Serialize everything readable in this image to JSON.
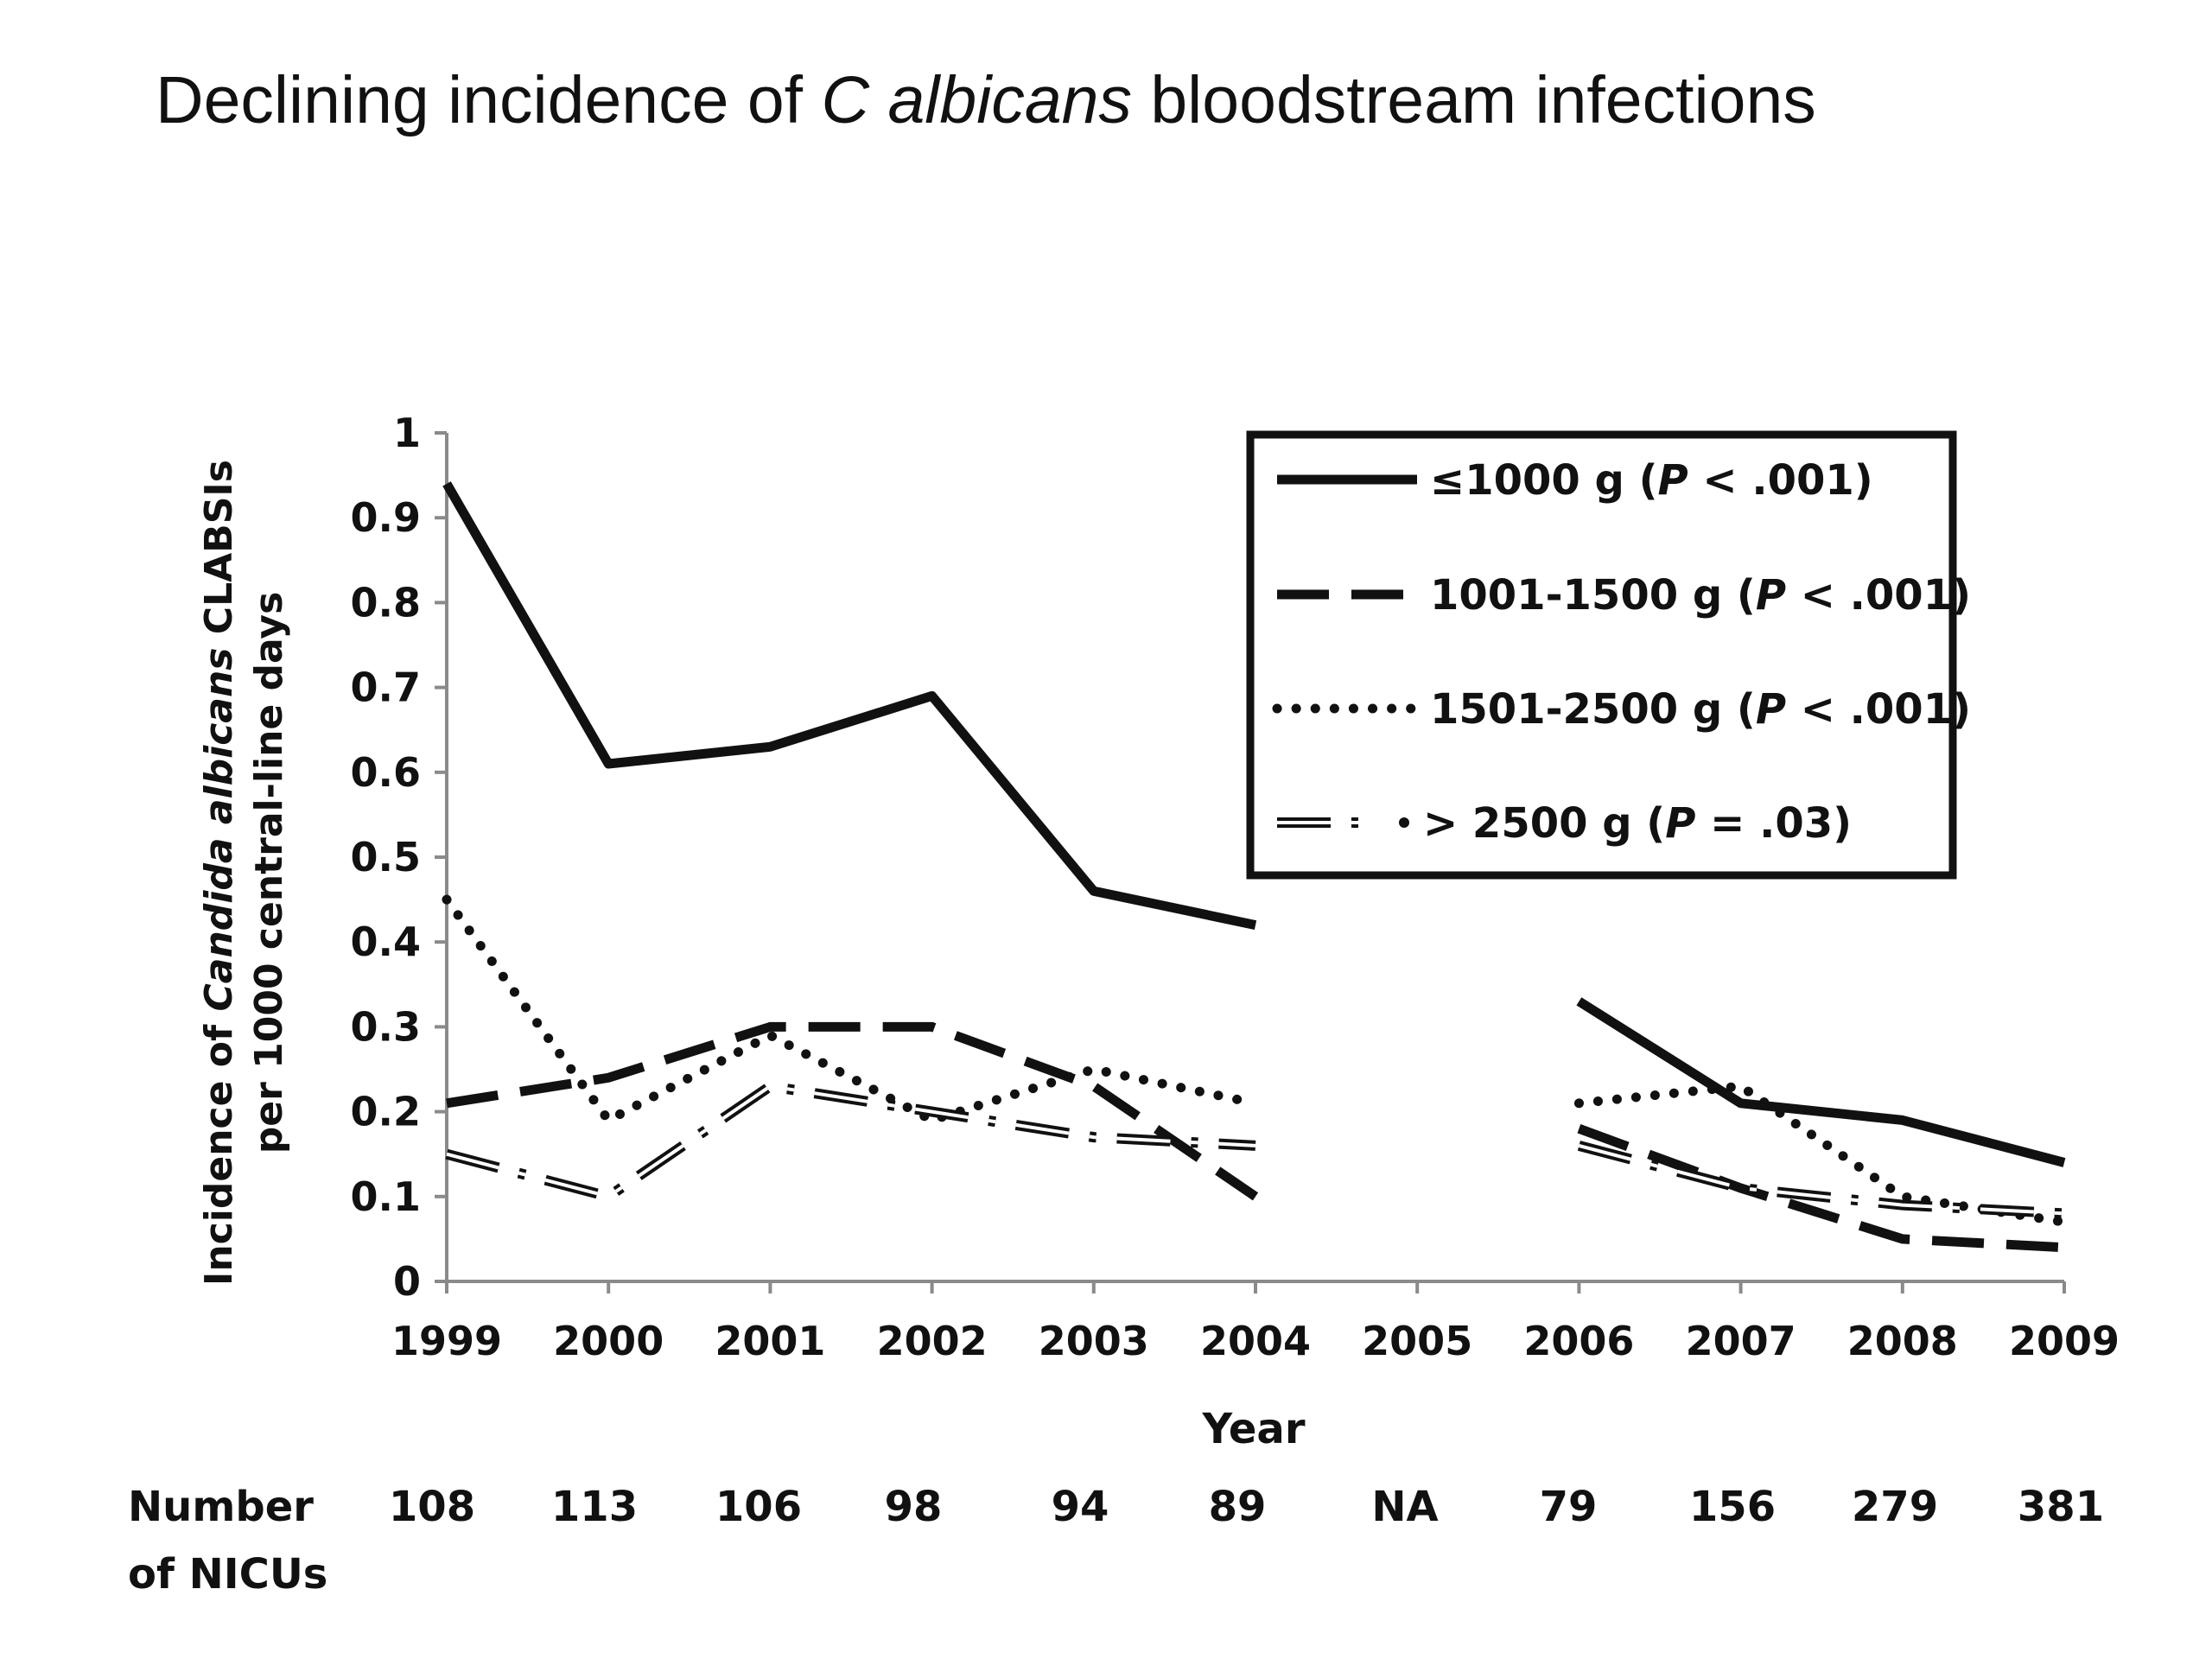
{
  "title": {
    "prefix": "Declining incidence of ",
    "italic": "C albicans",
    "suffix": " bloodstream infections"
  },
  "chart_data": {
    "type": "line",
    "x": [
      "1999",
      "2000",
      "2001",
      "2002",
      "2003",
      "2004",
      "2005",
      "2006",
      "2007",
      "2008",
      "2009"
    ],
    "xlabel": "Year",
    "ylabel": {
      "line1_prefix": "Incidence of ",
      "line1_italic": "Candida albicans",
      "line1_suffix": " CLABSIs",
      "line2": "per  1000 central-line days"
    },
    "ylim": [
      0,
      1
    ],
    "yticks": [
      "0",
      "0.1",
      "0.2",
      "0.3",
      "0.4",
      "0.5",
      "0.6",
      "0.7",
      "0.8",
      "0.9",
      "1"
    ],
    "grid": false,
    "legend_position": "top-right",
    "series": [
      {
        "name": "≤1000 g (P < .001)",
        "label_parts": [
          "≤1000 g (",
          "P",
          " < .001)"
        ],
        "style": "solid",
        "values": [
          0.94,
          0.61,
          0.63,
          0.69,
          0.46,
          0.42,
          null,
          0.33,
          0.21,
          0.19,
          0.14
        ]
      },
      {
        "name": "1001-1500 g (P < .001)",
        "label_parts": [
          "1001-1500 g (",
          "P",
          " < .001)"
        ],
        "style": "dashed",
        "values": [
          0.21,
          0.24,
          0.3,
          0.3,
          0.23,
          0.1,
          null,
          0.18,
          0.11,
          0.05,
          0.04
        ]
      },
      {
        "name": "1501-2500 g (P < .001)",
        "label_parts": [
          "1501-2500 g (",
          "P",
          " < .001)"
        ],
        "style": "dotted",
        "values": [
          0.45,
          0.19,
          0.29,
          0.19,
          0.25,
          0.21,
          null,
          0.21,
          0.23,
          0.1,
          0.07
        ]
      },
      {
        "name": "> 2500 g (P = .03)",
        "label_parts": [
          "> 2500 g (",
          "P",
          " = .03)"
        ],
        "style": "double-dashdot",
        "values": [
          0.15,
          0.1,
          0.23,
          0.2,
          0.17,
          0.16,
          null,
          0.16,
          0.11,
          0.09,
          0.08
        ]
      }
    ],
    "nicu_row": {
      "label_line1": "Number",
      "label_line2": "of NICUs",
      "values": [
        "108",
        "113",
        "106",
        "98",
        "94",
        "89",
        "NA",
        "79",
        "156",
        "279",
        "381"
      ]
    }
  }
}
